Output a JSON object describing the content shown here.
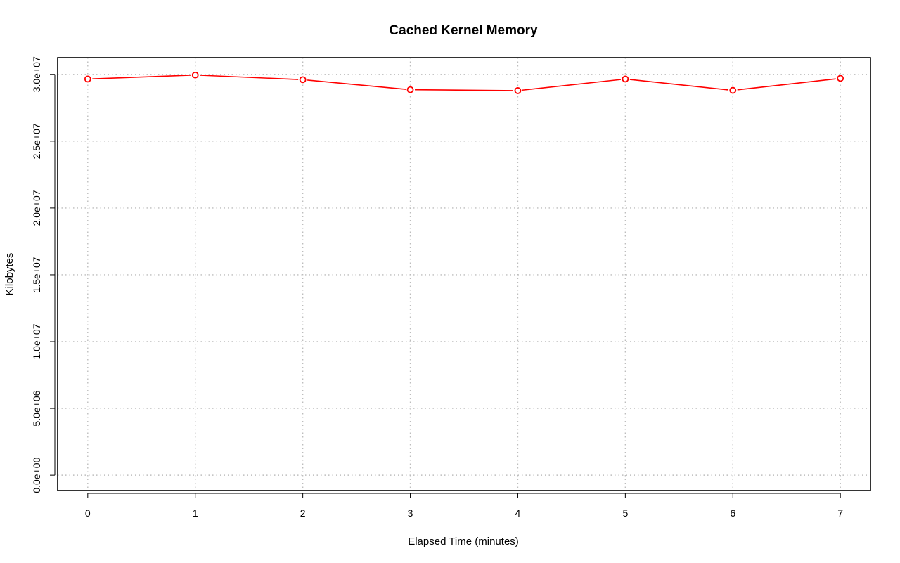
{
  "chart_data": {
    "type": "line",
    "title": "Cached Kernel Memory",
    "xlabel": "Elapsed Time (minutes)",
    "ylabel": "Kilobytes",
    "x": [
      0,
      1,
      2,
      3,
      4,
      5,
      6,
      7
    ],
    "xticks": [
      "0",
      "1",
      "2",
      "3",
      "4",
      "5",
      "6",
      "7"
    ],
    "yticks": [
      0,
      5000000,
      10000000,
      15000000,
      20000000,
      25000000,
      30000000
    ],
    "ytick_labels": [
      "0.0e+00",
      "5.0e+06",
      "1.0e+07",
      "1.5e+07",
      "2.0e+07",
      "2.5e+07",
      "3.0e+07"
    ],
    "xlim": [
      -0.28,
      7.28
    ],
    "ylim": [
      -1150000,
      31250000
    ],
    "grid": true,
    "series": [
      {
        "color": "#ff0000",
        "marker": "open-circle",
        "values": [
          29650000,
          29950000,
          29600000,
          28850000,
          28780000,
          29650000,
          28800000,
          29700000
        ]
      }
    ]
  }
}
